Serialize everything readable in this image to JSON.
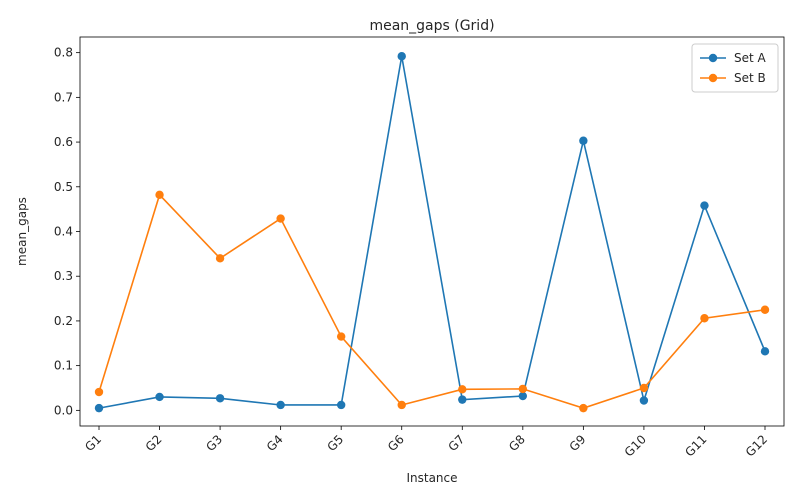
{
  "chart_data": {
    "type": "line",
    "title": "mean_gaps  (Grid)",
    "xlabel": "Instance",
    "ylabel": "mean_gaps",
    "categories": [
      "G1",
      "G2",
      "G3",
      "G4",
      "G5",
      "G6",
      "G7",
      "G8",
      "G9",
      "G10",
      "G11",
      "G12"
    ],
    "ylim": [
      -0.035,
      0.835
    ],
    "yticks": [
      0.0,
      0.1,
      0.2,
      0.3,
      0.4,
      0.5,
      0.6,
      0.7,
      0.8
    ],
    "ytick_labels": [
      "0.0",
      "0.1",
      "0.2",
      "0.3",
      "0.4",
      "0.5",
      "0.6",
      "0.7",
      "0.8"
    ],
    "grid": false,
    "legend_position": "top-right",
    "series": [
      {
        "name": "Set A",
        "color": "#1f77b4",
        "marker": "circle",
        "values": [
          0.005,
          0.03,
          0.027,
          0.012,
          0.012,
          0.792,
          0.024,
          0.032,
          0.603,
          0.022,
          0.458,
          0.132
        ]
      },
      {
        "name": "Set B",
        "color": "#ff7f0e",
        "marker": "circle",
        "values": [
          0.041,
          0.482,
          0.34,
          0.429,
          0.165,
          0.012,
          0.047,
          0.048,
          0.005,
          0.05,
          0.206,
          0.225
        ]
      }
    ]
  }
}
